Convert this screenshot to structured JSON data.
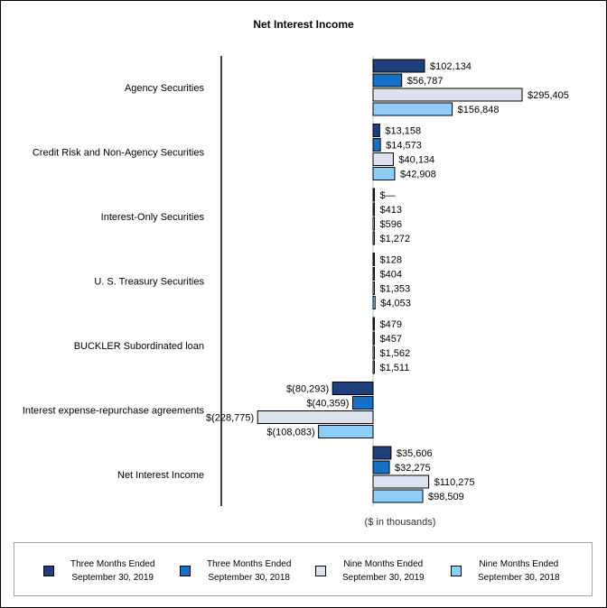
{
  "chart_data": {
    "type": "bar",
    "orientation": "horizontal",
    "title": "Net Interest Income",
    "xlabel": "($ in thousands)",
    "categories": [
      "Agency Securities",
      "Credit Risk and Non-Agency Securities",
      "Interest-Only Securities",
      "U. S. Treasury Securities",
      "BUCKLER Subordinated loan",
      "Interest expense-repurchase agreements",
      "Net Interest Income"
    ],
    "series": [
      {
        "name": "Three Months Ended September 30, 2019",
        "color": "#1f3f7a",
        "values": [
          102134,
          13158,
          0,
          128,
          479,
          -80293,
          35606
        ],
        "labels": [
          "$102,134",
          "$13,158",
          "$—",
          "$128",
          "$479",
          "$(80,293)",
          "$35,606"
        ]
      },
      {
        "name": "Three Months Ended September 30, 2018",
        "color": "#1870c6",
        "values": [
          56787,
          14573,
          413,
          404,
          457,
          -40359,
          32275
        ],
        "labels": [
          "$56,787",
          "$14,573",
          "$413",
          "$404",
          "$457",
          "$(40,359)",
          "$32,275"
        ]
      },
      {
        "name": "Nine Months Ended September 30, 2019",
        "color": "#dce3ee",
        "values": [
          295405,
          40134,
          596,
          1353,
          1562,
          -228775,
          110275
        ],
        "labels": [
          "$295,405",
          "$40,134",
          "$596",
          "$1,353",
          "$1,562",
          "$(228,775)",
          "$110,275"
        ]
      },
      {
        "name": "Nine Months Ended September 30, 2018",
        "color": "#8fcdf7",
        "values": [
          156848,
          42908,
          1272,
          4053,
          1511,
          -108083,
          98509
        ],
        "labels": [
          "$156,848",
          "$42,908",
          "$1,272",
          "$4,053",
          "$1,511",
          "$(108,083)",
          "$98,509"
        ]
      }
    ],
    "xlim": [
      -230000,
      300000
    ],
    "grid": false,
    "legend_position": "bottom"
  },
  "legend": [
    {
      "line1": "Three Months Ended",
      "line2": "September 30, 2019",
      "color": "#1f3f7a"
    },
    {
      "line1": "Three Months Ended",
      "line2": "September 30, 2018",
      "color": "#1870c6"
    },
    {
      "line1": "Nine Months Ended",
      "line2": "September 30, 2019",
      "color": "#dce3ee"
    },
    {
      "line1": "Nine Months Ended",
      "line2": "September 30, 2018",
      "color": "#8fcdf7"
    }
  ]
}
